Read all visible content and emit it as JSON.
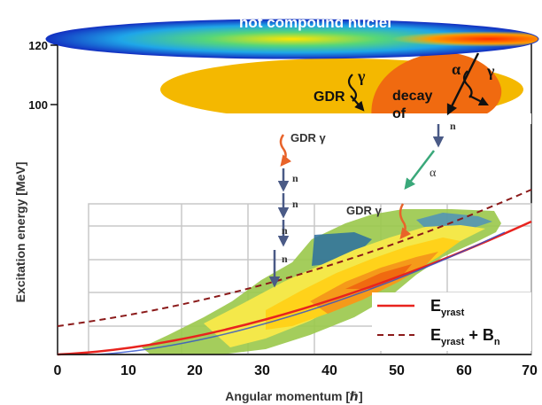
{
  "axes": {
    "x_label": "Angular momentum [ℏ]",
    "y_label": "Excitation energy [MeV]",
    "x_ticks": [
      "0",
      "10",
      "20",
      "30",
      "40",
      "50",
      "60",
      "70"
    ],
    "y_ticks": [
      "100",
      "120"
    ]
  },
  "labels": {
    "hot_compound_nuclei": "hot compound nuclei",
    "gdr_top": "GDR",
    "gamma": "γ",
    "alpha": "α",
    "decay": "decay",
    "of": "of",
    "gdr_gamma": "GDR γ",
    "n": "n"
  },
  "legend": {
    "yrast": {
      "main": "E",
      "sub": "yrast",
      "color": "#e8231e"
    },
    "yrast_bn": {
      "main": "E",
      "sub": "yrast",
      "extra": " + B",
      "extra_sub": "n",
      "color": "#8b1a1a"
    }
  },
  "colors": {
    "ellipse_top": "#1a3fcf",
    "ellipse_mid": "#f4b800",
    "ellipse_core": "#f06a10",
    "neutron_arrow": "#4a5a86",
    "gamma_wave": "#e8632a",
    "alpha_arrow": "#3aa87a"
  }
}
